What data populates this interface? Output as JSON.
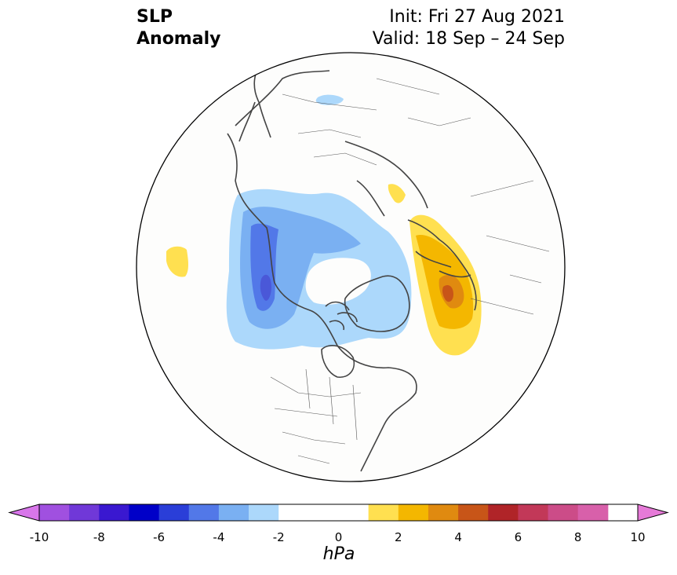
{
  "title": {
    "line1": "SLP",
    "line2": "Anomaly",
    "init": "Init: Fri 27 Aug 2021",
    "valid": "Valid: 18 Sep – 24 Sep"
  },
  "map": {
    "projection": "north-polar-stereographic",
    "background_color": "#fdfdfc",
    "coastline_color": "#444444"
  },
  "colorbar": {
    "units": "hPa",
    "ticks": [
      "-10",
      "-8",
      "-6",
      "-4",
      "-2",
      "0",
      "2",
      "4",
      "6",
      "8",
      "10"
    ],
    "levels": [
      -10,
      -9,
      -8,
      -7,
      -6,
      -5,
      -4,
      -3,
      -2,
      -1,
      1,
      2,
      3,
      4,
      5,
      6,
      7,
      8,
      9,
      10
    ],
    "colors": [
      "#a050e0",
      "#7038d8",
      "#3a18d0",
      "#0000c8",
      "#2a3ed8",
      "#5278e8",
      "#7ab0f2",
      "#acd8fb",
      "#ffffff",
      "#ffffff",
      "#ffe050",
      "#f4b700",
      "#e08a10",
      "#c85518",
      "#b02428",
      "#c23858",
      "#cc4c88",
      "#d860aa"
    ],
    "extend_low_color": "#d876ea",
    "extend_high_color": "#e67ad8"
  },
  "anomalies": [
    {
      "region": "north-pacific-alaska",
      "sign": "negative",
      "min_hpa": -5
    },
    {
      "region": "north-atlantic-europe",
      "sign": "positive",
      "max_hpa": 4
    },
    {
      "region": "barents-sea",
      "sign": "positive",
      "max_hpa": 1
    },
    {
      "region": "siberia-north",
      "sign": "negative",
      "min_hpa": -1
    },
    {
      "region": "west-pacific-edge",
      "sign": "positive",
      "max_hpa": 1
    }
  ]
}
